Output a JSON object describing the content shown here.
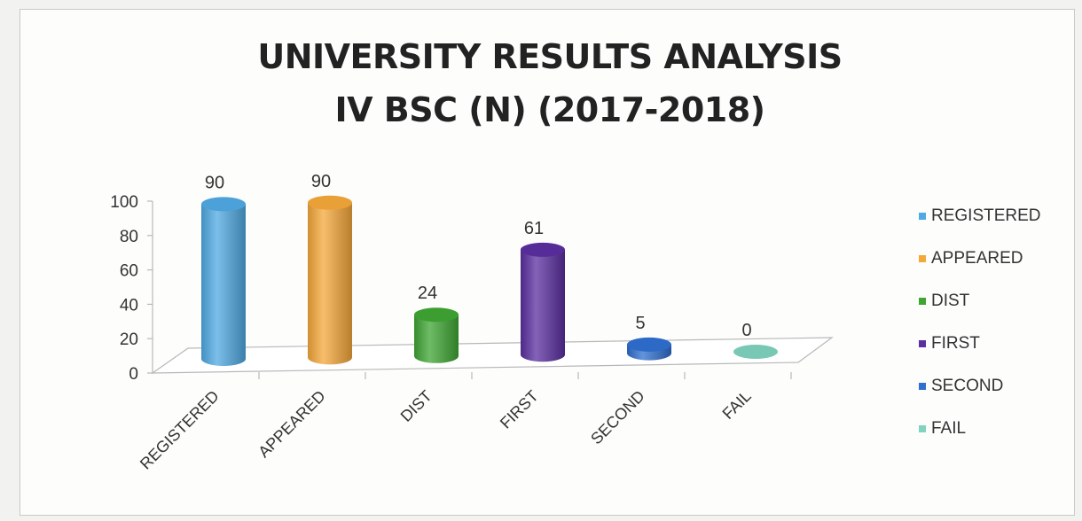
{
  "chart_data": {
    "type": "bar",
    "title": "UNIVERSITY RESULTS ANALYSIS",
    "subtitle": "IV BSC  (N) (2017-2018)",
    "categories": [
      "REGISTERED",
      "APPEARED",
      "DIST",
      "FIRST",
      "SECOND",
      "FAIL"
    ],
    "values": [
      90,
      90,
      24,
      61,
      5,
      0
    ],
    "colors": [
      "#4fa9e3",
      "#f5a83a",
      "#3fa634",
      "#5a2fa0",
      "#2f6fd0",
      "#7fd3c0"
    ],
    "ylim": [
      0,
      100
    ],
    "yticks": [
      0,
      20,
      40,
      60,
      80,
      100
    ],
    "legend_position": "right",
    "style": "3d-cylinder"
  }
}
